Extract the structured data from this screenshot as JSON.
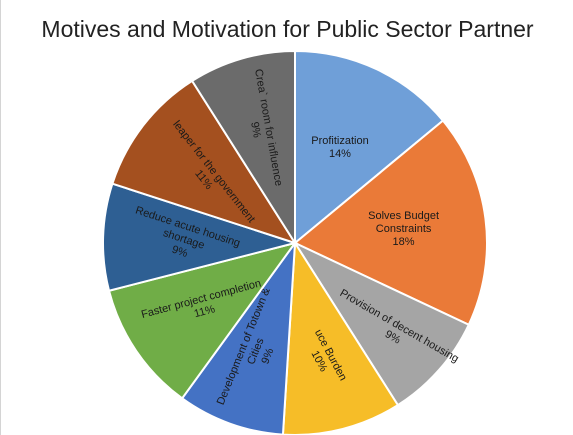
{
  "chart_data": {
    "type": "pie",
    "title": "Motives and Motivation for Public Sector Partner",
    "slices": [
      {
        "label": "Profitization",
        "value": 14,
        "pct_label": "14%",
        "color": "#6f9fd8",
        "label_color": "#1a1a1a"
      },
      {
        "label": "Solves Budget Constraints",
        "value": 18,
        "pct_label": "18%",
        "color": "#ea7a38",
        "label_color": "#1a1a1a"
      },
      {
        "label": "Provision of decent housing",
        "value": 9,
        "pct_label": "9%",
        "color": "#a5a5a5",
        "label_color": "#1a1a1a"
      },
      {
        "label": "uce Burden",
        "value": 10,
        "pct_label": "10%",
        "color": "#f6bd28",
        "label_color": "#1a1a1a"
      },
      {
        "label": "Development of Totown & Cities",
        "value": 9,
        "pct_label": "9%",
        "color": "#4472c4",
        "label_color": "#1a1a1a"
      },
      {
        "label": "Faster project completion",
        "value": 11,
        "pct_label": "11%",
        "color": "#70ad47",
        "label_color": "#1a1a1a"
      },
      {
        "label": "Reduce acute housing shortage",
        "value": 9,
        "pct_label": "9%",
        "color": "#2e5f93",
        "label_color": "#1a1a1a"
      },
      {
        "label": "leaper for the government",
        "value": 11,
        "pct_label": "11%",
        "color": "#a4501f",
        "label_color": "#1a1a1a"
      },
      {
        "label": "Crea` room for influence",
        "value": 9,
        "pct_label": "9%",
        "color": "#6b6b6b",
        "label_color": "#1a1a1a"
      }
    ]
  }
}
